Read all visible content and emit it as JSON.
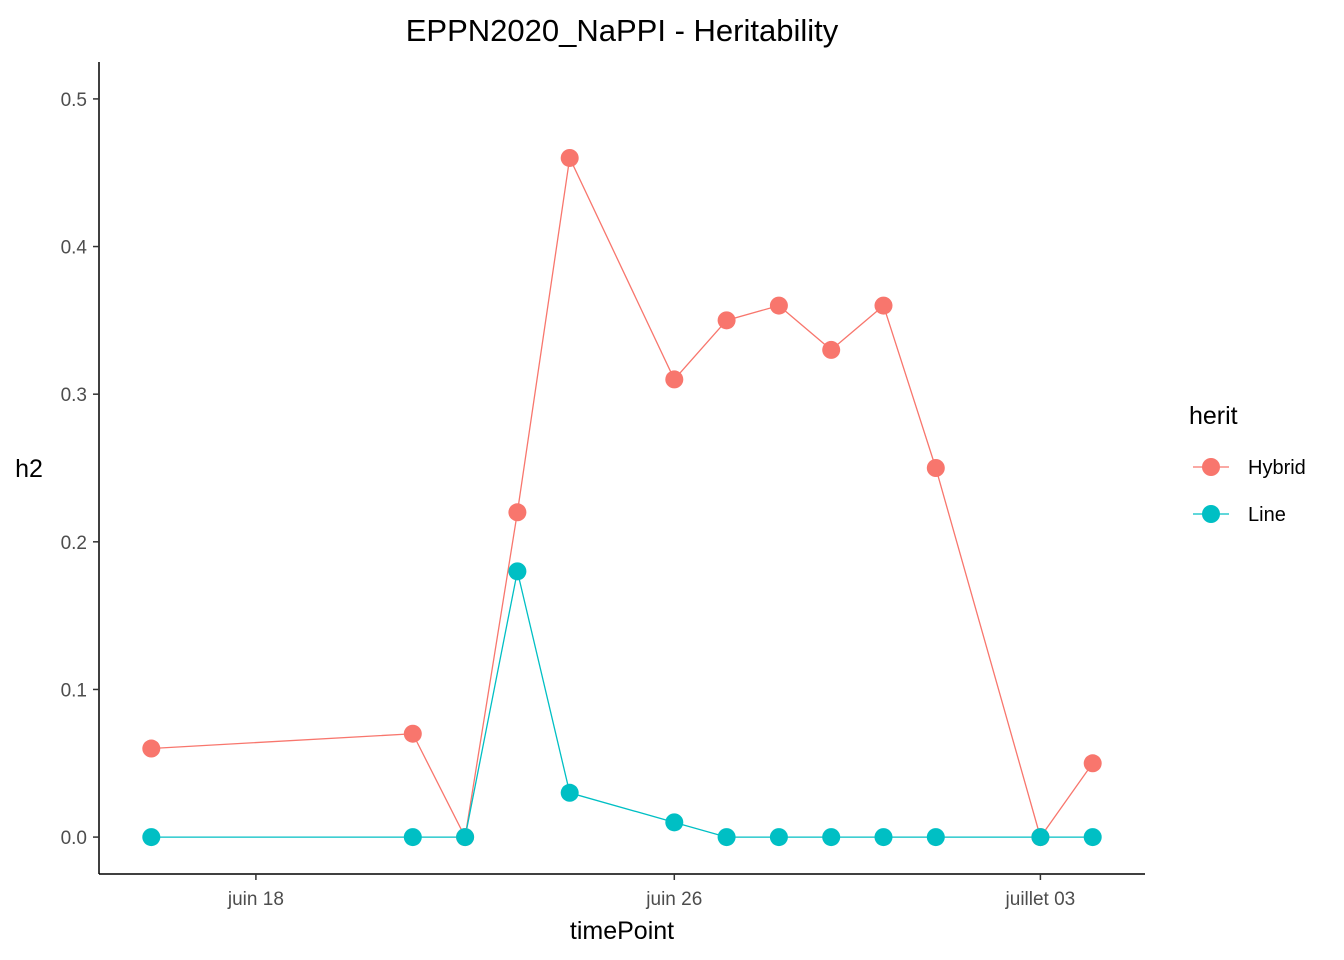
{
  "chart_data": {
    "type": "line",
    "title": "EPPN2020_NaPPI - Heritability",
    "xlabel": "timePoint",
    "ylabel": "h2",
    "x_type": "date",
    "x_tick_labels": [
      {
        "date": "2020-06-18",
        "label": "juin 18"
      },
      {
        "date": "2020-06-26",
        "label": "juin 26"
      },
      {
        "date": "2020-07-03",
        "label": "juillet 03"
      }
    ],
    "y_ticks": [
      0.0,
      0.1,
      0.2,
      0.3,
      0.4,
      0.5
    ],
    "y_tick_labels": [
      "0.0",
      "0.1",
      "0.2",
      "0.3",
      "0.4",
      "0.5"
    ],
    "ylim": [
      -0.025,
      0.525
    ],
    "xlim": [
      "2020-06-15",
      "2020-07-05"
    ],
    "grid": false,
    "legend": {
      "title": "herit",
      "position": "right"
    },
    "series": [
      {
        "name": "Hybrid",
        "color": "#F8766D",
        "points": [
          {
            "x": "2020-06-16",
            "y": 0.06
          },
          {
            "x": "2020-06-21",
            "y": 0.07
          },
          {
            "x": "2020-06-22",
            "y": 0.0
          },
          {
            "x": "2020-06-23",
            "y": 0.22
          },
          {
            "x": "2020-06-24",
            "y": 0.46
          },
          {
            "x": "2020-06-26",
            "y": 0.31
          },
          {
            "x": "2020-06-27",
            "y": 0.35
          },
          {
            "x": "2020-06-28",
            "y": 0.36
          },
          {
            "x": "2020-06-29",
            "y": 0.33
          },
          {
            "x": "2020-06-30",
            "y": 0.36
          },
          {
            "x": "2020-07-01",
            "y": 0.25
          },
          {
            "x": "2020-07-03",
            "y": 0.0
          },
          {
            "x": "2020-07-04",
            "y": 0.05
          }
        ]
      },
      {
        "name": "Line",
        "color": "#00BFC4",
        "points": [
          {
            "x": "2020-06-16",
            "y": 0.0
          },
          {
            "x": "2020-06-21",
            "y": 0.0
          },
          {
            "x": "2020-06-22",
            "y": 0.0
          },
          {
            "x": "2020-06-23",
            "y": 0.18
          },
          {
            "x": "2020-06-24",
            "y": 0.03
          },
          {
            "x": "2020-06-26",
            "y": 0.01
          },
          {
            "x": "2020-06-27",
            "y": 0.0
          },
          {
            "x": "2020-06-28",
            "y": 0.0
          },
          {
            "x": "2020-06-29",
            "y": 0.0
          },
          {
            "x": "2020-06-30",
            "y": 0.0
          },
          {
            "x": "2020-07-01",
            "y": 0.0
          },
          {
            "x": "2020-07-03",
            "y": 0.0
          },
          {
            "x": "2020-07-04",
            "y": 0.0
          }
        ]
      }
    ]
  }
}
